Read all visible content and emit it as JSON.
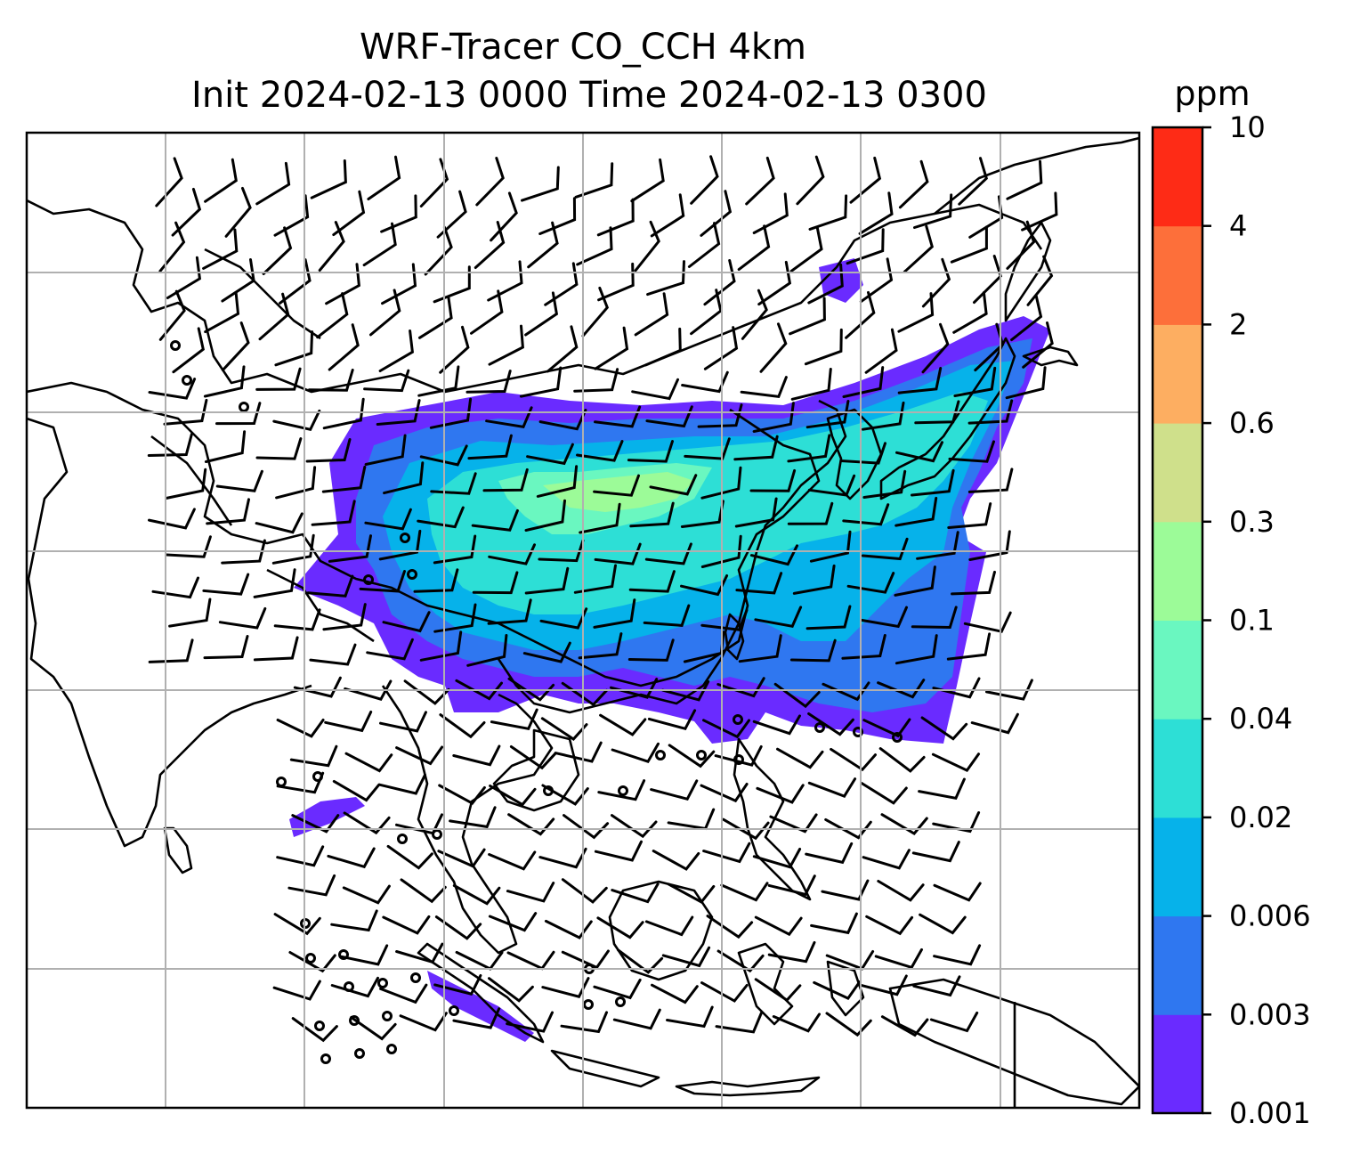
{
  "title": {
    "line1": "WRF-Tracer CO_CCH 4km",
    "line2": "Init 2024-02-13 0000 Time 2024-02-13 0300"
  },
  "colorbar": {
    "unit": "ppm",
    "levels": [
      "0.001",
      "0.003",
      "0.006",
      "0.02",
      "0.04",
      "0.1",
      "0.3",
      "0.6",
      "2",
      "4",
      "10"
    ],
    "colors": [
      "#6a2bff",
      "#2f77f0",
      "#06b2ea",
      "#2ddfd6",
      "#6af7c0",
      "#9cfb98",
      "#cfe08b",
      "#fdae61",
      "#fd6f3a",
      "#fe2b16"
    ]
  },
  "map": {
    "grid": true,
    "fields": [
      "CO_CCH tracer concentration (shaded)",
      "wind barbs"
    ]
  }
}
